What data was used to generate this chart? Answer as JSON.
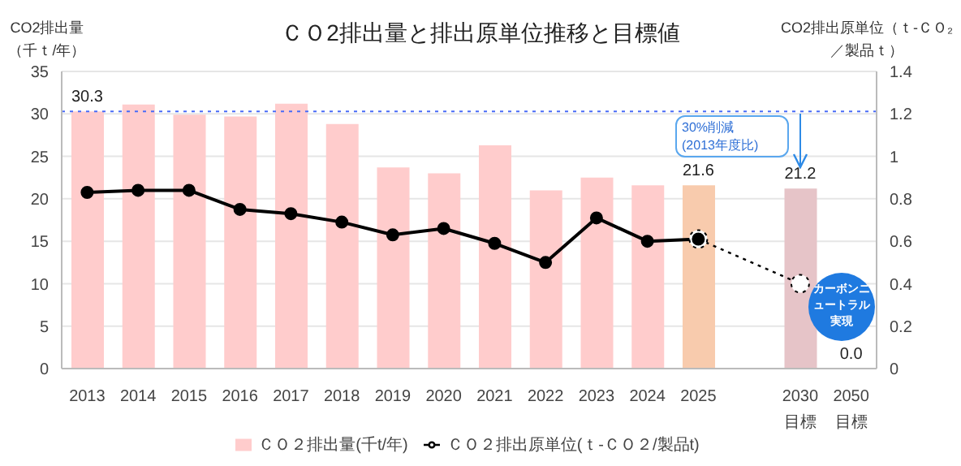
{
  "chart_data": {
    "type": "bar",
    "title": "ＣＯ2排出量と排出原単位推移と目標値",
    "ylabel": "CO2排出量（千ｔ/年）",
    "y2label": "CO2排出原単位（ｔ-ＣＯ₂／製品ｔ）",
    "categories": [
      "2013",
      "2014",
      "2015",
      "2016",
      "2017",
      "2018",
      "2019",
      "2020",
      "2021",
      "2022",
      "2023",
      "2024",
      "2025",
      null,
      "2030\n目標",
      "2050\n目標"
    ],
    "series": [
      {
        "name": "ＣＯ２排出量(千t/年)",
        "color": "#ffcccc",
        "colors": [
          "#ffcccc",
          "#ffcccc",
          "#ffcccc",
          "#ffcccc",
          "#ffcccc",
          "#ffcccc",
          "#ffcccc",
          "#ffcccc",
          "#ffcccc",
          "#ffcccc",
          "#ffcccc",
          "#ffcccc",
          "#f8cbad",
          null,
          "#e6c4c8",
          "#ffcccc"
        ],
        "values": [
          30.3,
          31.1,
          29.9,
          29.7,
          31.2,
          28.8,
          23.7,
          23.0,
          26.3,
          21.0,
          22.5,
          21.6,
          21.6,
          null,
          21.2,
          0.0
        ],
        "value_labels": [
          "30.3",
          null,
          null,
          null,
          null,
          null,
          null,
          null,
          null,
          null,
          null,
          null,
          "21.6",
          null,
          "21.2",
          "0.0"
        ]
      },
      {
        "type": "line",
        "axis": "y2",
        "color": "#000000",
        "marker": "circle",
        "line_style": "dotted",
        "values": [
          null,
          null,
          null,
          null,
          null,
          null,
          null,
          null,
          null,
          null,
          null,
          null,
          0.61,
          null,
          0.4,
          null
        ]
      },
      {
        "name": "ＣＯ２排出原単位(ｔ-ＣＯ２/製品t)",
        "type": "line",
        "axis": "y2",
        "color": "#000000",
        "marker": "circle",
        "line_style": "solid",
        "values": [
          0.83,
          0.84,
          0.84,
          0.75,
          0.73,
          0.69,
          0.63,
          0.66,
          0.59,
          0.5,
          0.71,
          0.6,
          0.61,
          null,
          null,
          null
        ]
      }
    ],
    "ylim": [
      0,
      35
    ],
    "yticks": [
      0,
      5,
      10,
      15,
      20,
      25,
      30,
      35
    ],
    "y2lim": [
      0,
      1.4
    ],
    "y2ticks": [
      0,
      0.2,
      0.4,
      0.6,
      0.8,
      1,
      1.2,
      1.4
    ],
    "grid": "y",
    "legend": "bottom",
    "ref_lines": [
      {
        "axis": "y",
        "value": 30.3,
        "color": "#4a6cf7",
        "line_style": "dotted"
      }
    ],
    "annotations": [
      "30%削減\n(2013年度比)",
      "カーボンニュートラル実現"
    ]
  }
}
